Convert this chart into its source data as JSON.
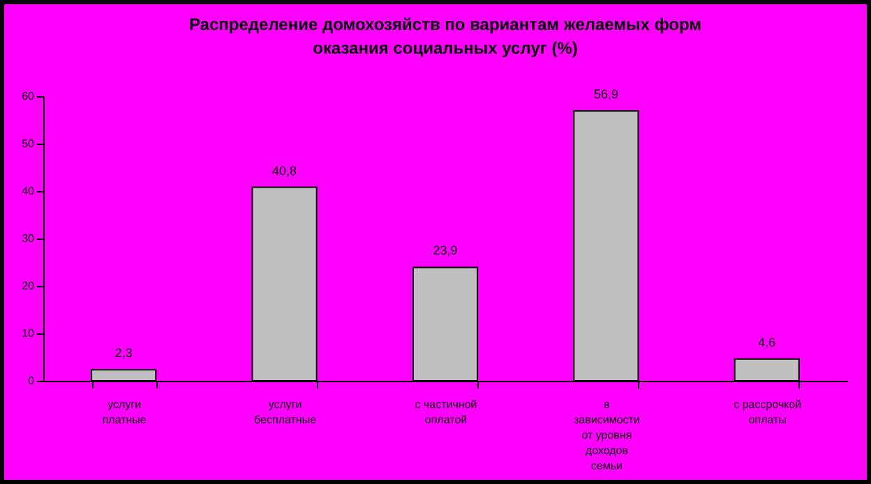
{
  "chart_data": {
    "type": "bar",
    "title": "Распределение домохозяйств по вариантам желаемых форм оказания социальных услуг (%)",
    "categories": [
      "услуги платные",
      "услуги бесплатные",
      "с частичной оплатой",
      "в зависимости от уровня доходов семьи",
      "с рассрочкой оплаты"
    ],
    "values": [
      2.3,
      40.8,
      23.9,
      56.9,
      4.6
    ],
    "value_labels": [
      "2,3",
      "40,8",
      "23,9",
      "56,9",
      "4,6"
    ],
    "color": "#c0c0c0",
    "ylim": [
      0,
      60
    ],
    "yticks": [
      0,
      10,
      20,
      30,
      40,
      50,
      60
    ],
    "grid": false
  }
}
